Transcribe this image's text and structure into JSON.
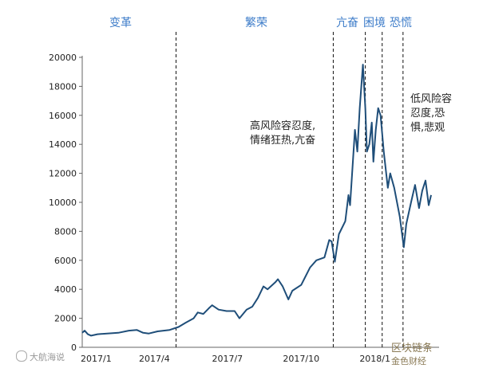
{
  "phases": {
    "p1": "变革",
    "p2": "繁荣",
    "p3": "亢奋",
    "p4": "困境",
    "p5": "恐慌"
  },
  "annotations": {
    "mania_line1": "高风险容忍度,",
    "mania_line2": "情绪狂热,亢奋",
    "fear_line1": "低风险容",
    "fear_line2": "忍度,恐",
    "fear_line3": "惧,悲观"
  },
  "watermarks": {
    "left": "大航海说",
    "right": "区块链条",
    "right_sub": "金色财经"
  },
  "chart_data": {
    "type": "line",
    "title": "",
    "xlabel": "",
    "ylabel": "",
    "ylim": [
      0,
      20000
    ],
    "yticks": [
      0,
      2000,
      4000,
      6000,
      8000,
      10000,
      12000,
      14000,
      16000,
      18000,
      20000
    ],
    "xticks": [
      "2017/1",
      "2017/4",
      "2017/7",
      "2017/10",
      "2018/1"
    ],
    "grid": false,
    "phase_boundaries": [
      "2017-04-28",
      "2017-11-10",
      "2017-12-20",
      "2018-01-10",
      "2018-02-05"
    ],
    "series": [
      {
        "name": "",
        "color": "#1f4e79",
        "points": [
          [
            "2017-01-01",
            1000
          ],
          [
            "2017-01-04",
            1150
          ],
          [
            "2017-01-08",
            900
          ],
          [
            "2017-01-12",
            800
          ],
          [
            "2017-01-20",
            900
          ],
          [
            "2017-02-01",
            950
          ],
          [
            "2017-02-15",
            1000
          ],
          [
            "2017-02-28",
            1150
          ],
          [
            "2017-03-10",
            1200
          ],
          [
            "2017-03-18",
            1000
          ],
          [
            "2017-03-25",
            950
          ],
          [
            "2017-04-05",
            1100
          ],
          [
            "2017-04-20",
            1200
          ],
          [
            "2017-05-01",
            1400
          ],
          [
            "2017-05-10",
            1700
          ],
          [
            "2017-05-20",
            2000
          ],
          [
            "2017-05-25",
            2400
          ],
          [
            "2017-06-01",
            2300
          ],
          [
            "2017-06-08",
            2700
          ],
          [
            "2017-06-12",
            2900
          ],
          [
            "2017-06-20",
            2600
          ],
          [
            "2017-06-30",
            2500
          ],
          [
            "2017-07-10",
            2500
          ],
          [
            "2017-07-16",
            2000
          ],
          [
            "2017-07-25",
            2600
          ],
          [
            "2017-08-01",
            2800
          ],
          [
            "2017-08-08",
            3400
          ],
          [
            "2017-08-15",
            4200
          ],
          [
            "2017-08-20",
            4000
          ],
          [
            "2017-08-30",
            4500
          ],
          [
            "2017-09-02",
            4700
          ],
          [
            "2017-09-08",
            4200
          ],
          [
            "2017-09-15",
            3300
          ],
          [
            "2017-09-20",
            3900
          ],
          [
            "2017-10-01",
            4300
          ],
          [
            "2017-10-12",
            5500
          ],
          [
            "2017-10-20",
            6000
          ],
          [
            "2017-10-30",
            6200
          ],
          [
            "2017-11-05",
            7400
          ],
          [
            "2017-11-08",
            7300
          ],
          [
            "2017-11-12",
            5900
          ],
          [
            "2017-11-17",
            7800
          ],
          [
            "2017-11-25",
            8700
          ],
          [
            "2017-11-29",
            10500
          ],
          [
            "2017-12-01",
            9800
          ],
          [
            "2017-12-07",
            15000
          ],
          [
            "2017-12-10",
            13500
          ],
          [
            "2017-12-13",
            16500
          ],
          [
            "2017-12-17",
            19500
          ],
          [
            "2017-12-20",
            16500
          ],
          [
            "2017-12-22",
            13500
          ],
          [
            "2017-12-25",
            14000
          ],
          [
            "2017-12-28",
            15500
          ],
          [
            "2017-12-30",
            12800
          ],
          [
            "2018-01-02",
            15000
          ],
          [
            "2018-01-05",
            16500
          ],
          [
            "2018-01-08",
            16000
          ],
          [
            "2018-01-12",
            13500
          ],
          [
            "2018-01-17",
            11000
          ],
          [
            "2018-01-20",
            12000
          ],
          [
            "2018-01-25",
            11000
          ],
          [
            "2018-02-01",
            9000
          ],
          [
            "2018-02-06",
            6900
          ],
          [
            "2018-02-09",
            8500
          ],
          [
            "2018-02-15",
            10000
          ],
          [
            "2018-02-20",
            11200
          ],
          [
            "2018-02-25",
            9600
          ],
          [
            "2018-03-01",
            10800
          ],
          [
            "2018-03-05",
            11500
          ],
          [
            "2018-03-09",
            9800
          ],
          [
            "2018-03-12",
            10500
          ]
        ]
      }
    ]
  }
}
